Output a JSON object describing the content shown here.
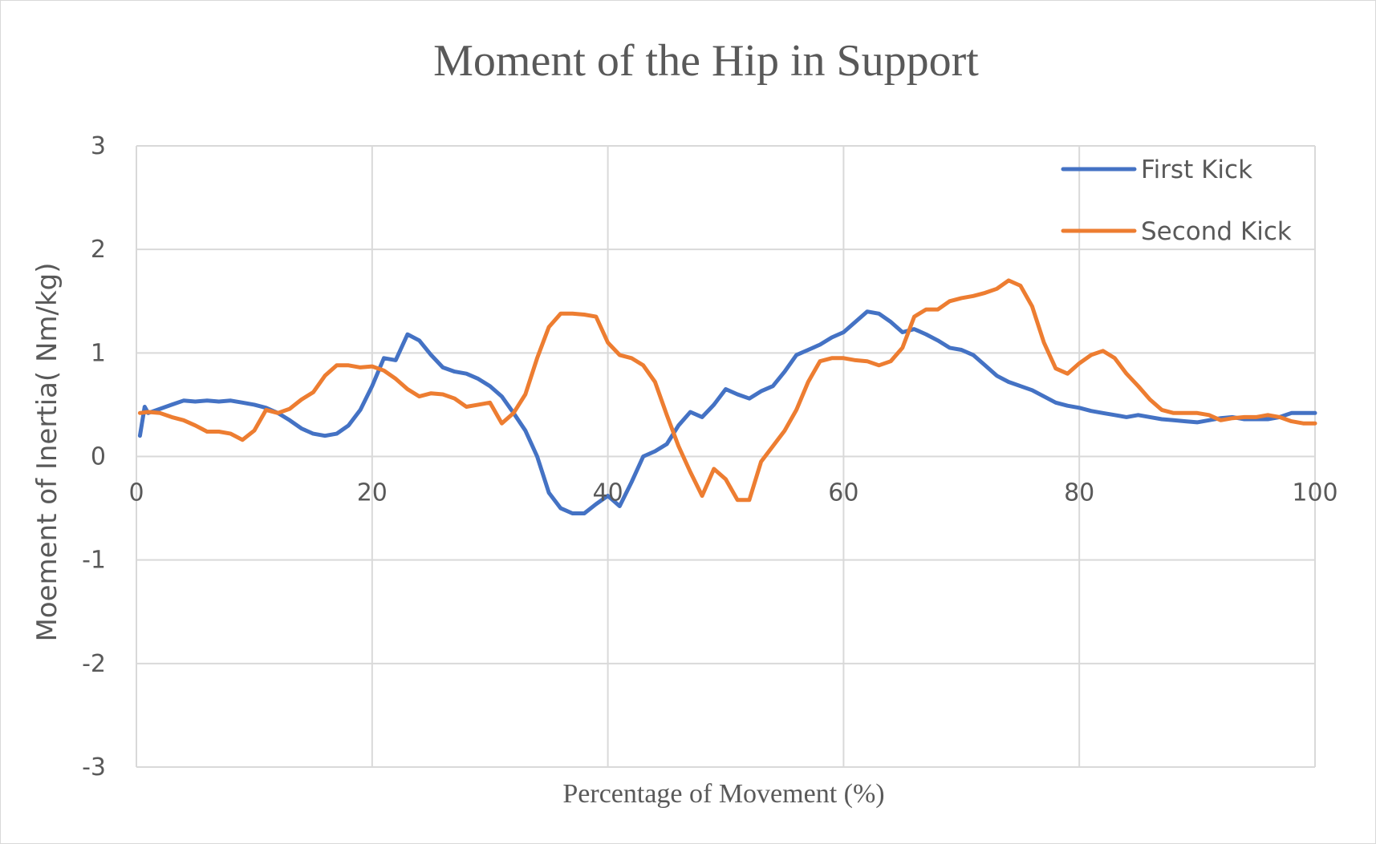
{
  "chart_data": {
    "type": "line",
    "title": "Moment of the Hip in Support",
    "xlabel": "Percentage of Movement (%)",
    "ylabel": "Moement of Inertia( Nm/kg)",
    "xlim": [
      0,
      100
    ],
    "ylim": [
      -3,
      3
    ],
    "x_ticks": [
      0,
      20,
      40,
      60,
      80,
      100
    ],
    "y_ticks": [
      3,
      2,
      1,
      0,
      -1,
      -2,
      -3
    ],
    "grid": true,
    "legend_position": "top-right",
    "series": [
      {
        "name": "First Kick",
        "color": "#4472c4",
        "x": [
          0.3,
          0.7,
          1,
          2,
          3,
          4,
          5,
          6,
          7,
          8,
          9,
          10,
          11,
          12,
          13,
          14,
          15,
          16,
          17,
          18,
          19,
          20,
          21,
          22,
          23,
          24,
          25,
          26,
          27,
          28,
          29,
          30,
          31,
          32,
          33,
          34,
          35,
          36,
          37,
          38,
          39,
          40,
          41,
          42,
          43,
          44,
          45,
          46,
          47,
          48,
          49,
          50,
          51,
          52,
          53,
          54,
          55,
          56,
          57,
          58,
          59,
          60,
          61,
          62,
          63,
          64,
          65,
          66,
          67,
          68,
          69,
          70,
          71,
          72,
          73,
          74,
          75,
          76,
          77,
          78,
          79,
          80,
          81,
          82,
          83,
          84,
          85,
          86,
          87,
          88,
          89,
          90,
          91,
          92,
          93,
          94,
          95,
          96,
          97,
          98,
          99,
          100
        ],
        "values": [
          0.2,
          0.48,
          0.42,
          0.46,
          0.5,
          0.54,
          0.53,
          0.54,
          0.53,
          0.54,
          0.52,
          0.5,
          0.47,
          0.42,
          0.35,
          0.27,
          0.22,
          0.2,
          0.22,
          0.3,
          0.45,
          0.68,
          0.95,
          0.93,
          1.18,
          1.12,
          0.98,
          0.86,
          0.82,
          0.8,
          0.75,
          0.68,
          0.58,
          0.42,
          0.25,
          0.0,
          -0.35,
          -0.5,
          -0.55,
          -0.55,
          -0.46,
          -0.38,
          -0.48,
          -0.25,
          0.0,
          0.05,
          0.12,
          0.3,
          0.43,
          0.38,
          0.5,
          0.65,
          0.6,
          0.56,
          0.63,
          0.68,
          0.82,
          0.98,
          1.03,
          1.08,
          1.15,
          1.2,
          1.3,
          1.4,
          1.38,
          1.3,
          1.2,
          1.23,
          1.18,
          1.12,
          1.05,
          1.03,
          0.98,
          0.88,
          0.78,
          0.72,
          0.68,
          0.64,
          0.58,
          0.52,
          0.49,
          0.47,
          0.44,
          0.42,
          0.4,
          0.38,
          0.4,
          0.38,
          0.36,
          0.35,
          0.34,
          0.33,
          0.35,
          0.37,
          0.38,
          0.36,
          0.36,
          0.36,
          0.38,
          0.42,
          0.42,
          0.42
        ]
      },
      {
        "name": "Second Kick",
        "color": "#ed7d31",
        "x": [
          0.3,
          1,
          2,
          3,
          4,
          5,
          6,
          7,
          8,
          9,
          10,
          11,
          12,
          13,
          14,
          15,
          16,
          17,
          18,
          19,
          20,
          21,
          22,
          23,
          24,
          25,
          26,
          27,
          28,
          29,
          30,
          31,
          32,
          33,
          34,
          35,
          36,
          37,
          38,
          39,
          40,
          41,
          42,
          43,
          44,
          45,
          46,
          47,
          48,
          49,
          50,
          51,
          52,
          53,
          54,
          55,
          56,
          57,
          58,
          59,
          60,
          61,
          62,
          63,
          64,
          65,
          66,
          67,
          68,
          69,
          70,
          71,
          72,
          73,
          74,
          75,
          76,
          77,
          78,
          79,
          80,
          81,
          82,
          83,
          84,
          85,
          86,
          87,
          88,
          89,
          90,
          91,
          92,
          93,
          94,
          95,
          96,
          97,
          98,
          99,
          100
        ],
        "values": [
          0.42,
          0.43,
          0.42,
          0.38,
          0.35,
          0.3,
          0.24,
          0.24,
          0.22,
          0.16,
          0.25,
          0.45,
          0.42,
          0.46,
          0.55,
          0.62,
          0.78,
          0.88,
          0.88,
          0.86,
          0.87,
          0.83,
          0.75,
          0.65,
          0.58,
          0.61,
          0.6,
          0.56,
          0.48,
          0.5,
          0.52,
          0.32,
          0.42,
          0.6,
          0.95,
          1.25,
          1.38,
          1.38,
          1.37,
          1.35,
          1.1,
          0.98,
          0.95,
          0.88,
          0.72,
          0.4,
          0.1,
          -0.15,
          -0.38,
          -0.12,
          -0.22,
          -0.42,
          -0.42,
          -0.05,
          0.1,
          0.25,
          0.45,
          0.72,
          0.92,
          0.95,
          0.95,
          0.93,
          0.92,
          0.88,
          0.92,
          1.05,
          1.35,
          1.42,
          1.42,
          1.5,
          1.53,
          1.55,
          1.58,
          1.62,
          1.7,
          1.65,
          1.45,
          1.1,
          0.85,
          0.8,
          0.9,
          0.98,
          1.02,
          0.95,
          0.8,
          0.68,
          0.55,
          0.45,
          0.42,
          0.42,
          0.42,
          0.4,
          0.35,
          0.37,
          0.38,
          0.38,
          0.4,
          0.38,
          0.34,
          0.32,
          0.32
        ]
      }
    ]
  }
}
